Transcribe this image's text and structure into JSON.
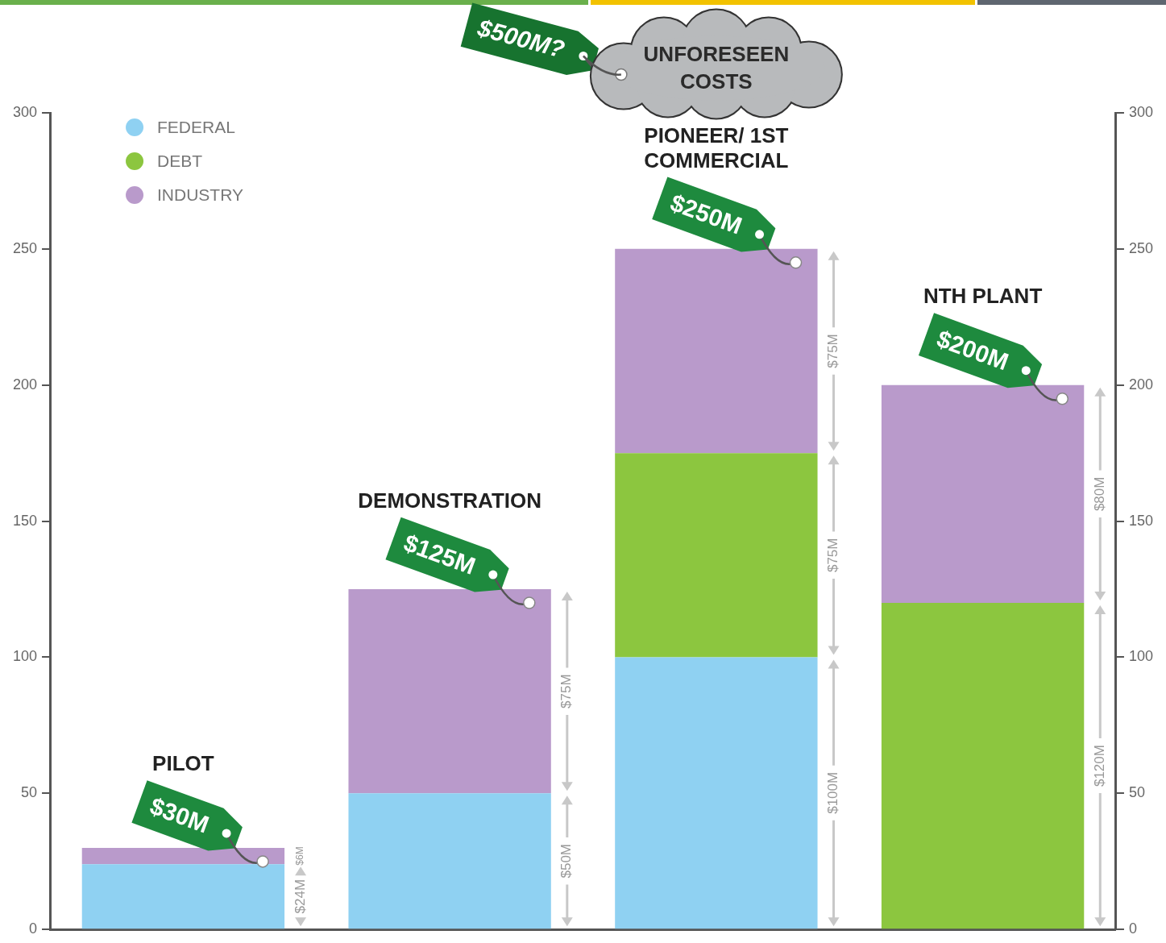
{
  "chart_data": {
    "type": "bar",
    "stacked": true,
    "categories": [
      "PILOT",
      "DEMONSTRATION",
      "PIONEER/ 1ST COMMERCIAL",
      "NTH PLANT"
    ],
    "series": [
      {
        "name": "FEDERAL",
        "color": "#8fd1f2",
        "values": [
          24,
          50,
          100,
          null
        ],
        "value_labels": [
          "$24M",
          "$50M",
          "$100M",
          null
        ]
      },
      {
        "name": "DEBT",
        "color": "#8cc63f",
        "values": [
          null,
          null,
          75,
          120
        ],
        "value_labels": [
          null,
          null,
          "$75M",
          "$120M"
        ]
      },
      {
        "name": "INDUSTRY",
        "color": "#b99acb",
        "values": [
          6,
          75,
          75,
          80
        ],
        "value_labels": [
          "$6M",
          "$75M",
          "$75M",
          "$80M"
        ]
      }
    ],
    "total_labels": [
      "$30M",
      "$125M",
      "$250M",
      "$200M"
    ],
    "annotations": [
      {
        "text": "UNFORESEEN COSTS",
        "category": "PIONEER/ 1ST COMMERCIAL"
      },
      {
        "text": "$500M?",
        "category": "PIONEER/ 1ST COMMERCIAL"
      }
    ],
    "ylim": [
      0,
      300
    ],
    "yticks": [
      0,
      50,
      100,
      150,
      200,
      250,
      300
    ],
    "y2lim": [
      0,
      300
    ],
    "y2ticks": [
      0,
      50,
      100,
      150,
      200,
      250,
      300
    ],
    "grid": false,
    "legend": "upper left",
    "data_labels": true,
    "tick_labels": "y"
  }
}
